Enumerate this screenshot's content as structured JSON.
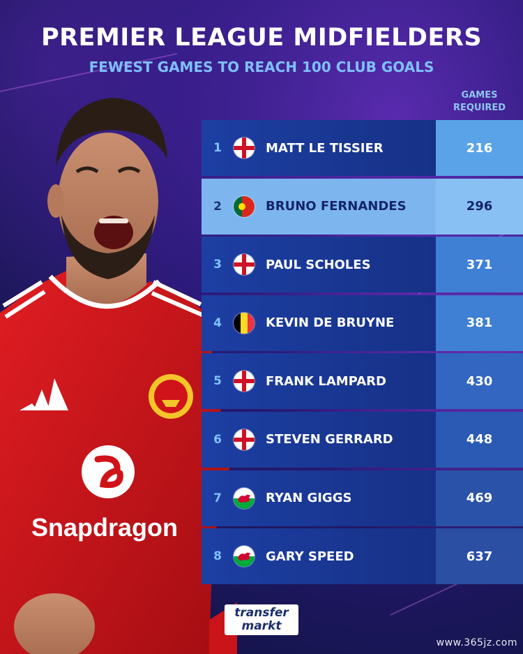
{
  "header": {
    "title": "PREMIER LEAGUE MIDFIELDERS",
    "subtitle": "FEWEST GAMES TO REACH 100 CLUB GOALS",
    "column_header_line1": "GAMES",
    "column_header_line2": "REQUIRED"
  },
  "rows": [
    {
      "rank": "1",
      "flag": "england-flag",
      "name": "MATT LE TISSIER",
      "games": "216",
      "highlight": false
    },
    {
      "rank": "2",
      "flag": "portugal-flag",
      "name": "BRUNO FERNANDES",
      "games": "296",
      "highlight": true
    },
    {
      "rank": "3",
      "flag": "england-flag",
      "name": "PAUL SCHOLES",
      "games": "371",
      "highlight": false
    },
    {
      "rank": "4",
      "flag": "belgium-flag",
      "name": "KEVIN DE BRUYNE",
      "games": "381",
      "highlight": false
    },
    {
      "rank": "5",
      "flag": "england-flag",
      "name": "FRANK LAMPARD",
      "games": "430",
      "highlight": false
    },
    {
      "rank": "6",
      "flag": "england-flag",
      "name": "STEVEN GERRARD",
      "games": "448",
      "highlight": false
    },
    {
      "rank": "7",
      "flag": "wales-flag",
      "name": "RYAN GIGGS",
      "games": "469",
      "highlight": false
    },
    {
      "rank": "8",
      "flag": "wales-flag",
      "name": "GARY SPEED",
      "games": "637",
      "highlight": false
    }
  ],
  "player_photo": {
    "shirt_sponsor": "Snapdragon"
  },
  "logo": {
    "line1": "transfer",
    "line2": "markt"
  },
  "watermark": "www.365jz.com",
  "colors": {
    "background": "#1a1a5e",
    "row": "#1d3fa3",
    "highlight_row": "#7db6ee",
    "subtitle": "#7fc0ff",
    "shirt_red": "#d0131a"
  }
}
